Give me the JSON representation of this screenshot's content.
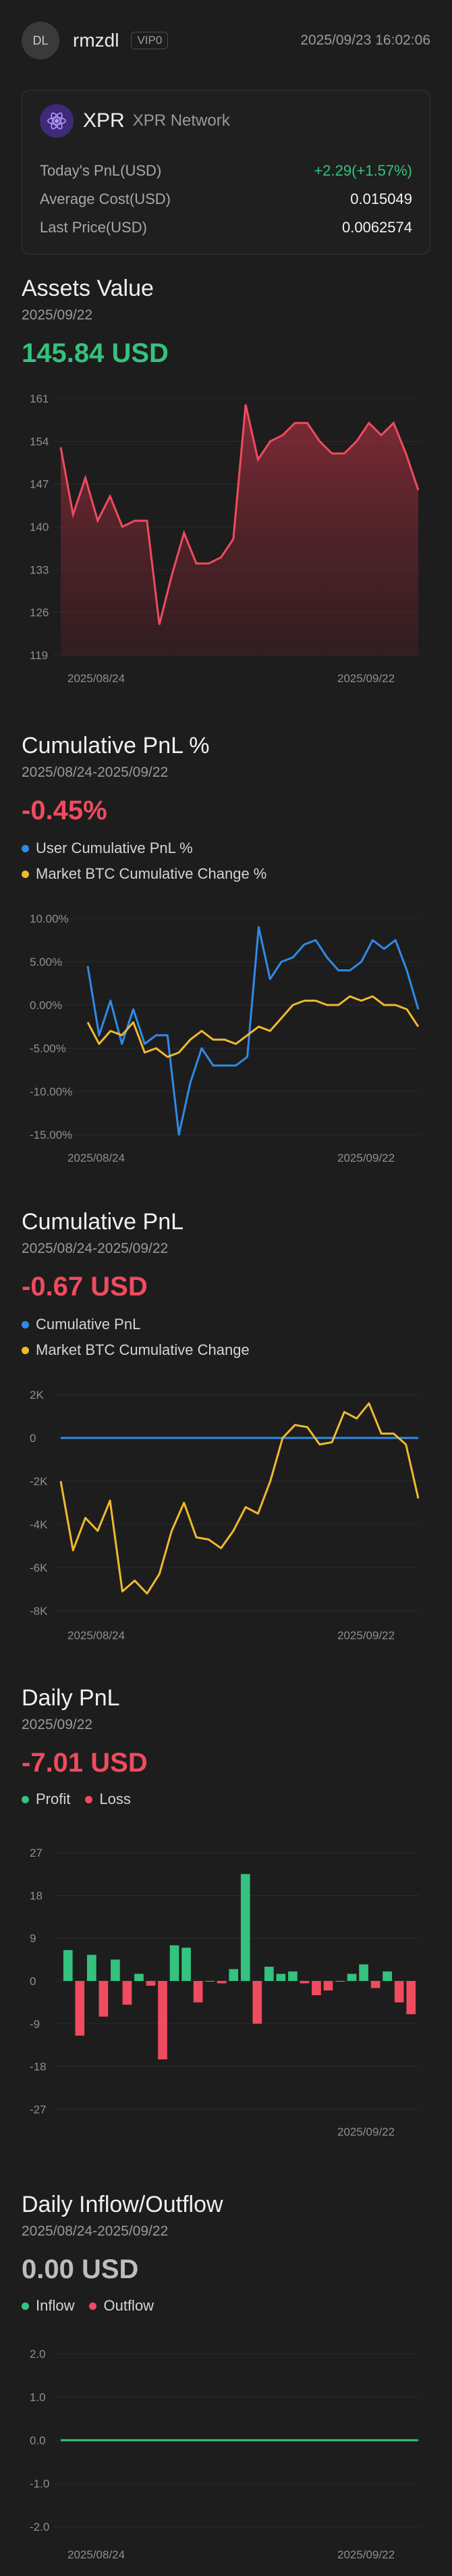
{
  "header": {
    "avatar_initials": "DL",
    "username": "rmzdl",
    "vip_badge": "VIP0",
    "timestamp": "2025/09/23 16:02:06"
  },
  "asset_card": {
    "symbol": "XPR",
    "name": "XPR Network",
    "icon": "xpr-atom-icon",
    "rows": [
      {
        "label": "Today's PnL(USD)",
        "value": "+2.29(+1.57%)"
      },
      {
        "label": "Average Cost(USD)",
        "value": "0.015049"
      },
      {
        "label": "Last Price(USD)",
        "value": "0.0062574"
      }
    ]
  },
  "colors": {
    "background": "#1d1d1d",
    "green": "#34c27f",
    "red": "#f04b5e",
    "blue": "#2f8be6",
    "yellow": "#f0b92e"
  },
  "sections": {
    "assets": {
      "title": "Assets Value",
      "date": "2025/09/22",
      "value": "145.84 USD"
    },
    "cum_pnl_pct": {
      "title": "Cumulative PnL %",
      "date": "2025/08/24-2025/09/22",
      "value": "-0.45%",
      "legend": [
        "User Cumulative PnL %",
        "Market BTC Cumulative Change %"
      ]
    },
    "cum_pnl": {
      "title": "Cumulative PnL",
      "date": "2025/08/24-2025/09/22",
      "value": "-0.67 USD",
      "legend": [
        "Cumulative PnL",
        "Market BTC Cumulative Change"
      ]
    },
    "daily_pnl": {
      "title": "Daily PnL",
      "date": "2025/09/22",
      "value": "-7.01 USD",
      "legend": [
        "Profit",
        "Loss"
      ]
    },
    "inflow": {
      "title": "Daily Inflow/Outflow",
      "date": "2025/08/24-2025/09/22",
      "value": "0.00 USD",
      "legend": [
        "Inflow",
        "Outflow"
      ]
    }
  },
  "chart_data": [
    {
      "type": "area",
      "yticks": [
        "161",
        "154",
        "147",
        "140",
        "133",
        "126",
        "119"
      ],
      "xticks": [
        "2025/08/24",
        "2025/09/22"
      ],
      "ylim": [
        119,
        161
      ],
      "series": [
        {
          "values": [
            153,
            142,
            148,
            141,
            145,
            140,
            141,
            141,
            124,
            132,
            139,
            134,
            134,
            135,
            138,
            160,
            151,
            154,
            155,
            157,
            157,
            154,
            152,
            152,
            154,
            157,
            155,
            157,
            152,
            146
          ]
        }
      ]
    },
    {
      "type": "line",
      "yticks": [
        "10.00%",
        "5.00%",
        "0.00%",
        "-5.00%",
        "-10.00%",
        "-15.00%"
      ],
      "xticks": [
        "2025/08/24",
        "2025/09/22"
      ],
      "ylim": [
        -15,
        10
      ],
      "series": [
        {
          "name": "User Cumulative PnL %",
          "values": [
            4.5,
            -3.5,
            0.5,
            -4.5,
            -0.5,
            -4.5,
            -3.5,
            -3.5,
            -15,
            -9,
            -5,
            -7,
            -7,
            -7,
            -6,
            9,
            3,
            5,
            5.5,
            7,
            7.5,
            5.5,
            4,
            4,
            5,
            7.5,
            6.5,
            7.5,
            4,
            -0.5
          ]
        },
        {
          "name": "Market BTC Cumulative Change %",
          "values": [
            -2,
            -4.5,
            -3,
            -3.5,
            -2,
            -5.5,
            -5,
            -6,
            -5.5,
            -4,
            -3,
            -4,
            -4,
            -4.5,
            -3.5,
            -2.5,
            -3,
            -1.5,
            0,
            0.5,
            0.5,
            0,
            0,
            1,
            0.5,
            1,
            0,
            0,
            -0.5,
            -2.5
          ]
        }
      ]
    },
    {
      "type": "line",
      "yticks": [
        "2K",
        "0",
        "-2K",
        "-4K",
        "-6K",
        "-8K"
      ],
      "xticks": [
        "2025/08/24",
        "2025/09/22"
      ],
      "ylim": [
        -8000,
        2000
      ],
      "series": [
        {
          "name": "Cumulative PnL",
          "values": [
            -0.6,
            -0.6,
            -0.6,
            -0.6,
            -0.6,
            -0.6,
            -0.6,
            -0.6,
            -0.6,
            -0.6,
            -0.6,
            -0.6,
            -0.6,
            -0.6,
            -0.6,
            -0.6,
            -0.6,
            -0.6,
            -0.6,
            -0.6,
            -0.6,
            -0.6,
            -0.6,
            -0.6,
            -0.6,
            -0.6,
            -0.6,
            -0.6,
            -0.6,
            -0.6
          ]
        },
        {
          "name": "Market BTC Cumulative Change",
          "values": [
            -2000,
            -5200,
            -3700,
            -4300,
            -2900,
            -7100,
            -6600,
            -7200,
            -6300,
            -4300,
            -3000,
            -4600,
            -4700,
            -5100,
            -4300,
            -3200,
            -3500,
            -2000,
            0,
            600,
            500,
            -300,
            -200,
            1200,
            900,
            1600,
            200,
            200,
            -300,
            -2800
          ]
        }
      ]
    },
    {
      "type": "bar",
      "yticks": [
        "27",
        "18",
        "9",
        "0",
        "-9",
        "-18",
        "-27"
      ],
      "xticks": [
        "2025/09/22"
      ],
      "ylim": [
        -27,
        27
      ],
      "series": [
        {
          "name": "Daily PnL",
          "values": [
            6.5,
            -11.5,
            5.5,
            -7.5,
            4.5,
            -5,
            1.5,
            -1,
            -16.5,
            7.5,
            7,
            -4.5,
            0,
            -0.5,
            2.5,
            22.5,
            -9,
            3,
            1.5,
            2,
            -0.5,
            -3,
            -2,
            0,
            1.5,
            3.5,
            -1.5,
            2,
            -4.5,
            -7
          ]
        }
      ]
    },
    {
      "type": "line",
      "yticks": [
        "2.0",
        "1.0",
        "0.0",
        "-1.0",
        "-2.0"
      ],
      "xticks": [
        "2025/08/24",
        "2025/09/22"
      ],
      "ylim": [
        -2,
        2
      ],
      "series": [
        {
          "values": [
            0,
            0,
            0,
            0,
            0,
            0,
            0,
            0,
            0,
            0,
            0,
            0,
            0,
            0,
            0,
            0,
            0,
            0,
            0,
            0,
            0,
            0,
            0,
            0,
            0,
            0,
            0,
            0,
            0,
            0
          ]
        }
      ]
    }
  ]
}
